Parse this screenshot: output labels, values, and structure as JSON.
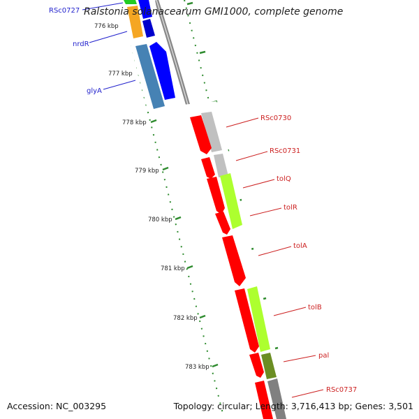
{
  "title": "Ralstonia solanacearum GMI1000, complete genome",
  "footer": {
    "accession": "Accession: NC_003295",
    "summary": "Topology: circular; Length: 3,716,413 bp; Genes: 3,501"
  },
  "colors": {
    "backbone": "#8c8c8c",
    "tick": "#2e8b2e",
    "left_label": "#1f1fcc",
    "right_label": "#cc1f1f",
    "kbp_label": "#222222"
  },
  "kbp_ticks": [
    "776 kbp",
    "777 kbp",
    "778 kbp",
    "779 kbp",
    "780 kbp",
    "781 kbp",
    "782 kbp",
    "783 kbp"
  ],
  "left_genes": [
    {
      "name": "RSc0727",
      "color": "#22cc22"
    },
    {
      "name": "nrdR",
      "color": "#f5a623"
    },
    {
      "name": "glyA",
      "color": "#4682b4"
    }
  ],
  "right_genes": [
    {
      "name": "RSc0730",
      "color": "#c0c0c0"
    },
    {
      "name": "RSc0731",
      "color": "#c0c0c0"
    },
    {
      "name": "tolQ",
      "color": "#adff2f"
    },
    {
      "name": "tolR",
      "color": "#adff2f"
    },
    {
      "name": "tolA",
      "color": "#ff0000"
    },
    {
      "name": "tolB",
      "color": "#adff2f"
    },
    {
      "name": "pal",
      "color": "#6b8e23"
    },
    {
      "name": "RSc0737",
      "color": "#808080"
    }
  ],
  "features": {
    "blue": "#0000ff",
    "red": "#ff0000"
  }
}
